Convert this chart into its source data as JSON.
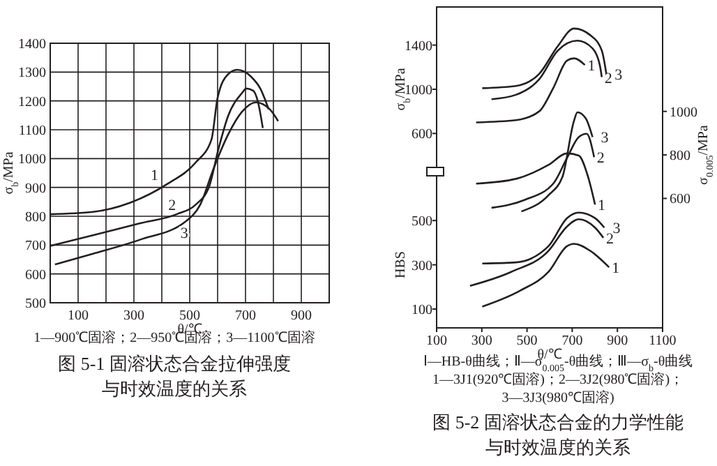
{
  "chart_data": [
    {
      "type": "line",
      "title": "图 5-1 固溶状态合金拉伸强度",
      "subtitle": "与时效温度的关系",
      "xlabel": "θ/℃",
      "ylabel": "σ$_{b}$/MPa",
      "xlim": [
        0,
        1000
      ],
      "xticks": [
        100,
        {
          "value": 200,
          "label": null
        },
        300,
        {
          "value": 400,
          "label": null
        },
        500,
        {
          "value": 600,
          "label": null
        },
        700,
        {
          "value": 800,
          "label": null
        },
        900
      ],
      "ylim": [
        500,
        1400
      ],
      "yticks": [
        500,
        600,
        700,
        800,
        900,
        1000,
        1100,
        1200,
        1300,
        1400
      ],
      "grid": true,
      "annotations": [
        "1—900℃固溶；2—950℃固溶；3—1100℃固溶"
      ],
      "series": [
        {
          "name": "1",
          "color": "#231f20",
          "x": [
            0,
            153,
            287,
            420,
            520,
            578,
            600,
            637,
            670,
            720,
            753,
            783
          ],
          "values": [
            807,
            815,
            847,
            912,
            985,
            1066,
            1211,
            1292,
            1308,
            1284,
            1243,
            1171
          ]
        },
        {
          "name": "2",
          "color": "#231f20",
          "x": [
            0,
            153,
            320,
            453,
            520,
            570,
            603,
            637,
            687,
            703,
            728,
            745,
            762
          ],
          "values": [
            697,
            734,
            775,
            807,
            839,
            904,
            1033,
            1146,
            1227,
            1243,
            1235,
            1195,
            1106
          ]
        },
        {
          "name": "3",
          "color": "#231f20",
          "x": [
            17,
            153,
            320,
            487,
            537,
            587,
            637,
            687,
            737,
            787,
            817
          ],
          "values": [
            633,
            670,
            718,
            783,
            839,
            969,
            1082,
            1162,
            1195,
            1171,
            1130
          ]
        }
      ]
    },
    {
      "type": "line",
      "title": "图 5-2 固溶状态合金的力学性能",
      "subtitle": "与时效温度的关系",
      "xlabel": "θ/℃",
      "ylabel": "σ$_{b}$/MPa",
      "y2label": "σ$_{0.005}$/MPa",
      "y3label": "HBS",
      "xlim": [
        100,
        1100
      ],
      "xticks": [
        100,
        300,
        500,
        700,
        900,
        1100
      ],
      "ylim": [
        -1160,
        1745
      ],
      "yticks": [
        600,
        1000,
        1400
      ],
      "y2lim": [
        5,
        1480
      ],
      "y2ticks": [
        600,
        800,
        1000
      ],
      "y3lim": [
        15,
        1465
      ],
      "y3ticks": [
        100,
        300,
        500
      ],
      "annotations": [
        "Ⅰ—HB-θ曲线；Ⅱ—σ$_{0.005}$-θ曲线；Ⅲ—σ$_{b}$-θ曲线",
        "1—3J1(920℃固溶)；2—3J2(980℃固溶)；",
        "3—3J3(980℃固溶)"
      ],
      "series": [
        {
          "name": "1",
          "color": "#231f20",
          "x": [
            275,
            451,
            554,
            616,
            677,
            708,
            756
          ],
          "values": [
            700,
            720,
            800,
            1010,
            1260,
            1280,
            1220
          ]
        },
        {
          "name": "2",
          "color": "#231f20",
          "x": [
            343,
            451,
            554,
            636,
            723,
            790,
            822,
            831
          ],
          "values": [
            910,
            950,
            1090,
            1350,
            1440,
            1370,
            1220,
            1110
          ]
        },
        {
          "name": "3",
          "color": "#231f20",
          "x": [
            302,
            451,
            554,
            636,
            708,
            780,
            831,
            851
          ],
          "values": [
            1010,
            1030,
            1140,
            1390,
            1550,
            1490,
            1350,
            1140
          ]
        },
        {
          "name": "1",
          "color": "#231f20",
          "axis": "y2",
          "x": [
            275,
            451,
            595,
            677,
            729,
            770,
            801
          ],
          "values": [
            668,
            690,
            754,
            807,
            797,
            700,
            572
          ]
        },
        {
          "name": "2",
          "color": "#231f20",
          "axis": "y2",
          "x": [
            343,
            492,
            616,
            677,
            729,
            764,
            797
          ],
          "values": [
            557,
            594,
            668,
            786,
            882,
            897,
            790
          ]
        },
        {
          "name": "3",
          "color": "#231f20",
          "axis": "y2",
          "x": [
            475,
            595,
            657,
            708,
            723,
            760,
            790
          ],
          "values": [
            540,
            615,
            700,
            957,
            996,
            968,
            882
          ]
        },
        {
          "name": "1",
          "color": "#231f20",
          "axis": "y3",
          "x": [
            302,
            471,
            595,
            677,
            708,
            780,
            863
          ],
          "values": [
            111,
            184,
            268,
            384,
            395,
            363,
            289
          ]
        },
        {
          "name": "2",
          "color": "#231f20",
          "axis": "y3",
          "x": [
            248,
            430,
            595,
            677,
            729,
            801,
            838
          ],
          "values": [
            205,
            268,
            363,
            473,
            506,
            468,
            422
          ]
        },
        {
          "name": "3",
          "color": "#231f20",
          "axis": "y3",
          "x": [
            302,
            451,
            595,
            677,
            729,
            801,
            842
          ],
          "values": [
            306,
            311,
            384,
            511,
            536,
            511,
            468
          ]
        }
      ]
    }
  ]
}
